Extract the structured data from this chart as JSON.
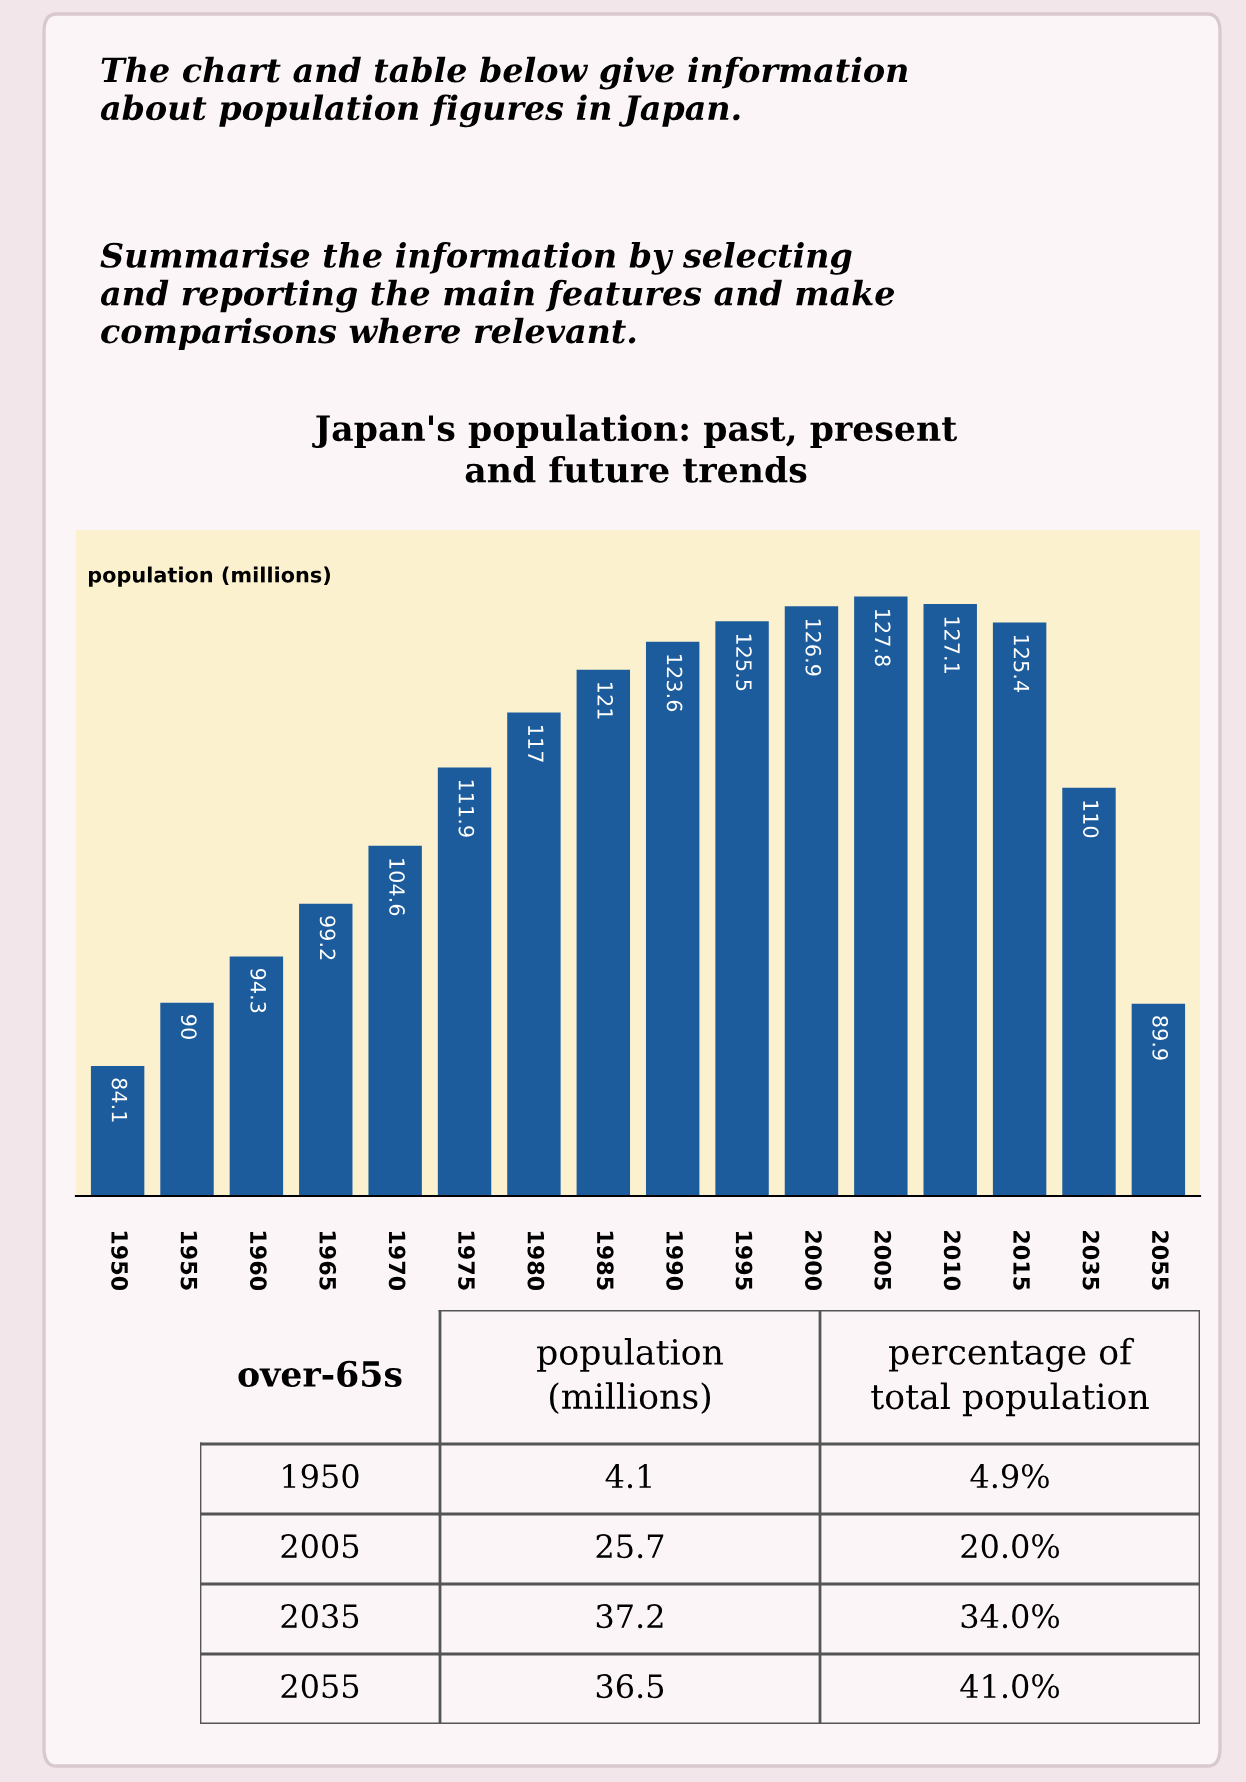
{
  "chart_data": [
    {
      "type": "bar",
      "title": "Japan's population: past, present\nand future trends",
      "ylabel": "population (millions)",
      "annotations": [
        "The chart and table below give information\nabout population figures in Japan.",
        "Summarise the information by selecting\nand reporting the main features and make\ncomparisons where relevant."
      ],
      "categories": [
        "1950",
        "1955",
        "1960",
        "1965",
        "1970",
        "1975",
        "1980",
        "1985",
        "1990",
        "1995",
        "2000",
        "2005",
        "2010",
        "2015",
        "2035",
        "2055"
      ],
      "values": [
        84.1,
        90,
        94.3,
        99.2,
        104.6,
        111.9,
        117,
        121,
        123.6,
        125.5,
        126.9,
        127.8,
        127.1,
        125.4,
        110,
        89.9
      ],
      "color": "#1d5c9c",
      "ylim": [
        72,
        134
      ],
      "tick_labels": "x",
      "data_labels": true
    },
    {
      "type": "other",
      "categories": [
        "over-65s",
        "population\n(millions)",
        "percentage of\ntotal population"
      ],
      "y_categories": [
        "1950",
        "2005",
        "2035",
        "2055"
      ],
      "cell_labels": [
        [
          "4.1",
          "4.9%"
        ],
        [
          "25.7",
          "20.0%"
        ],
        [
          "37.2",
          "34.0%"
        ],
        [
          "36.5",
          "41.0%"
        ]
      ]
    }
  ]
}
